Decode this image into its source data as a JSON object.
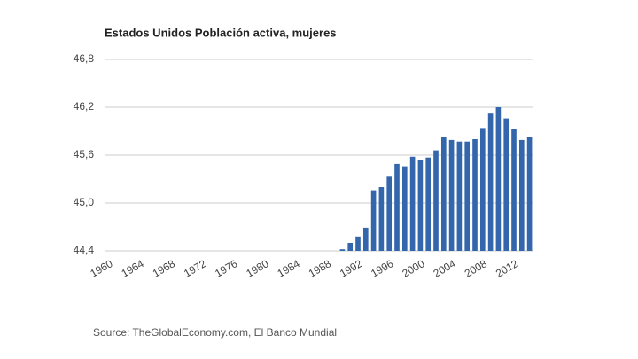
{
  "chart_data": {
    "type": "bar",
    "title": "Estados Unidos Población activa, mujeres",
    "source": "Source: TheGlobalEconomy.com, El Banco Mundial",
    "categories": [
      "1960",
      null,
      null,
      null,
      "1964",
      null,
      null,
      null,
      "1968",
      null,
      null,
      null,
      "1972",
      null,
      null,
      null,
      "1976",
      null,
      null,
      null,
      "1980",
      null,
      null,
      null,
      "1984",
      null,
      null,
      null,
      "1988",
      null,
      null,
      null,
      "1992",
      null,
      null,
      null,
      "1996",
      null,
      null,
      null,
      "2000",
      null,
      null,
      null,
      "2004",
      null,
      null,
      null,
      "2008",
      null,
      null,
      null,
      "2012",
      null,
      null
    ],
    "values": [
      null,
      null,
      null,
      null,
      null,
      null,
      null,
      null,
      null,
      null,
      null,
      null,
      null,
      null,
      null,
      null,
      null,
      null,
      null,
      null,
      null,
      null,
      null,
      null,
      null,
      null,
      null,
      null,
      null,
      null,
      44.42,
      44.5,
      44.58,
      44.69,
      45.16,
      45.2,
      45.33,
      45.49,
      45.46,
      45.58,
      45.54,
      45.57,
      45.66,
      45.83,
      45.79,
      45.77,
      45.77,
      45.8,
      45.94,
      46.12,
      46.2,
      46.06,
      45.93,
      45.79,
      45.83
    ],
    "color": "#3366aa",
    "ylim": [
      44.4,
      46.8
    ],
    "yticks": [
      {
        "value": 44.4,
        "label": "44,4"
      },
      {
        "value": 45.0,
        "label": "45,0"
      },
      {
        "value": 45.6,
        "label": "45,6"
      },
      {
        "value": 46.2,
        "label": "46,2"
      },
      {
        "value": 46.8,
        "label": "46,8"
      }
    ],
    "grid": true
  }
}
